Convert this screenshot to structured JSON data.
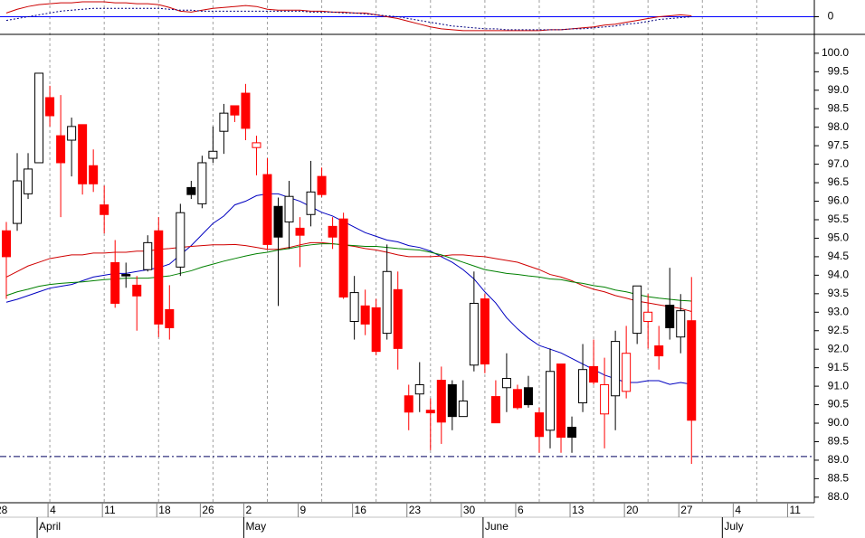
{
  "chart_data": [
    {
      "type": "candlestick",
      "categories": [
        "28",
        null,
        null,
        null,
        null,
        "4",
        null,
        null,
        null,
        null,
        "11",
        null,
        null,
        null,
        null,
        "18",
        null,
        null,
        null,
        "26",
        null,
        null,
        null,
        "2",
        null,
        null,
        null,
        null,
        "9",
        null,
        null,
        null,
        null,
        "16",
        null,
        null,
        null,
        null,
        "23",
        null,
        null,
        null,
        null,
        "30",
        null,
        null,
        null,
        null,
        "6",
        null,
        null,
        null,
        null,
        "13",
        null,
        null,
        null,
        null,
        "20",
        null,
        null,
        null,
        null,
        "27",
        null,
        null,
        null,
        null,
        "4",
        null,
        null,
        null,
        null,
        "11"
      ],
      "month_labels": [
        null,
        null,
        null,
        null,
        "April",
        null,
        null,
        null,
        null,
        null,
        null,
        null,
        null,
        null,
        null,
        null,
        null,
        null,
        null,
        null,
        null,
        null,
        null,
        "May",
        null,
        null,
        null,
        null,
        null,
        null,
        null,
        null,
        null,
        null,
        null,
        null,
        null,
        null,
        null,
        null,
        null,
        null,
        null,
        null,
        null,
        "June",
        null,
        null,
        null,
        null,
        null,
        null,
        null,
        null,
        null,
        null,
        null,
        null,
        null,
        null,
        null,
        null,
        null,
        null,
        null,
        null,
        null,
        "July",
        null,
        null,
        null,
        null,
        null,
        null
      ],
      "open": [
        null,
        95.2,
        95.4,
        96.2,
        97.04,
        98.8,
        97.77,
        97.65,
        98.07,
        96.96,
        95.9,
        94.34,
        94.02,
        93.73,
        94.15,
        95.2,
        93.07,
        94.22,
        96.18,
        95.93,
        97.16,
        97.89,
        98.58,
        98.92,
        97.58,
        96.72,
        95.86,
        95.44,
        95.27,
        95.64,
        96.67,
        95.32,
        95.52,
        92.75,
        93.17,
        93.12,
        92.43,
        93.61,
        90.74,
        90.79,
        90.35,
        91.16,
        91.04,
        90.18,
        91.57,
        93.36,
        90.72,
        90.96,
        90.91,
        90.96,
        90.28,
        89.81,
        91.6,
        89.89,
        90.55,
        91.53,
        90.25,
        90.74,
        90.86,
        92.43,
        92.75,
        92.09,
        93.19,
        92.33,
        92.77,
        null,
        null,
        null,
        null,
        null,
        null,
        null,
        null,
        null
      ],
      "high": [
        null,
        95.44,
        97.3,
        97.3,
        99.46,
        99.12,
        98.87,
        98.26,
        98.07,
        97.4,
        96.42,
        94.95,
        94.34,
        93.98,
        95.08,
        95.57,
        93.73,
        95.93,
        96.55,
        97.23,
        98.02,
        98.63,
        98.58,
        99.17,
        97.77,
        97.16,
        96.1,
        96.55,
        95.57,
        97.09,
        96.91,
        95.57,
        95.69,
        93.98,
        93.61,
        93.36,
        94.83,
        94.1,
        91.04,
        91.65,
        90.67,
        91.53,
        91.16,
        91.16,
        94.1,
        93.49,
        91.16,
        91.89,
        91.04,
        91.28,
        90.42,
        92.02,
        91.6,
        90.18,
        92.14,
        92.26,
        91.77,
        92.5,
        92.63,
        93.71,
        93.49,
        92.63,
        94.2,
        93.49,
        93.95,
        null,
        null,
        null,
        null,
        null,
        null,
        null,
        null,
        null
      ],
      "low": [
        null,
        93.36,
        95.2,
        96.06,
        97.04,
        98.02,
        95.57,
        96.67,
        96.18,
        96.25,
        95.13,
        93.12,
        93.66,
        92.5,
        94.1,
        92.33,
        92.26,
        93.98,
        96.06,
        95.81,
        97.04,
        97.28,
        98.14,
        97.65,
        96.7,
        94.71,
        93.17,
        94.71,
        94.22,
        95.32,
        96.11,
        94.71,
        93.36,
        92.26,
        92.38,
        91.84,
        92.26,
        91.45,
        89.81,
        90.3,
        89.27,
        89.44,
        89.81,
        90.18,
        91.4,
        91.35,
        90.01,
        90.3,
        90.37,
        90.42,
        89.2,
        89.32,
        89.2,
        89.2,
        90.3,
        91.04,
        89.32,
        89.81,
        90.67,
        92.14,
        92.02,
        91.45,
        92.26,
        91.89,
        88.9,
        null,
        null,
        null,
        null,
        null,
        null,
        null,
        null,
        null
      ],
      "close": [
        null,
        94.5,
        96.55,
        96.87,
        99.46,
        98.31,
        97.04,
        98.02,
        96.47,
        96.47,
        95.64,
        93.24,
        93.98,
        93.44,
        94.88,
        92.68,
        92.58,
        95.69,
        96.37,
        97.04,
        97.35,
        98.38,
        98.33,
        97.97,
        97.45,
        94.83,
        95.03,
        96.13,
        95.08,
        96.25,
        96.18,
        95.03,
        93.41,
        93.53,
        92.68,
        91.94,
        94.1,
        92.02,
        90.3,
        91.04,
        90.28,
        90.03,
        90.18,
        90.6,
        93.24,
        91.6,
        90.01,
        91.21,
        90.42,
        90.5,
        89.64,
        91.4,
        89.62,
        89.62,
        91.45,
        91.11,
        91.04,
        92.21,
        91.89,
        93.71,
        93.0,
        91.82,
        92.58,
        93.04,
        90.08,
        null,
        null,
        null,
        null,
        null,
        null,
        null,
        null,
        null
      ],
      "fill": [
        null,
        "#f00",
        "#fff",
        "#fff",
        "#fff",
        "#f00",
        "#f00",
        "#fff",
        "#f00",
        "#f00",
        "#f00",
        "#f00",
        "#000",
        "#f00",
        "#fff",
        "#f00",
        "#f00",
        "#fff",
        "#000",
        "#fff",
        "#fff",
        "#fff",
        "#f00",
        "#f00",
        "#fff",
        "#f00",
        "#000",
        "#fff",
        "#f00",
        "#fff",
        "#f00",
        "#f00",
        "#f00",
        "#fff",
        "#f00",
        "#f00",
        "#fff",
        "#f00",
        "#f00",
        "#fff",
        "#f00",
        "#f00",
        "#000",
        "#fff",
        "#fff",
        "#f00",
        "#f00",
        "#fff",
        "#f00",
        "#000",
        "#f00",
        "#fff",
        "#f00",
        "#000",
        "#fff",
        "#f00",
        "#fff",
        "#fff",
        "#fff",
        "#fff",
        "#fff",
        "#f00",
        "#000",
        "#fff",
        "#f00",
        null,
        null,
        null,
        null,
        null,
        null,
        null,
        null,
        null
      ],
      "edge": [
        null,
        "#f00",
        "#000",
        "#000",
        "#000",
        "#f00",
        "#f00",
        "#000",
        "#f00",
        "#f00",
        "#f00",
        "#f00",
        "#000",
        "#f00",
        "#000",
        "#f00",
        "#f00",
        "#000",
        "#000",
        "#000",
        "#000",
        "#000",
        "#f00",
        "#f00",
        "#f00",
        "#f00",
        "#000",
        "#000",
        "#f00",
        "#000",
        "#f00",
        "#f00",
        "#f00",
        "#000",
        "#f00",
        "#f00",
        "#000",
        "#f00",
        "#f00",
        "#000",
        "#f00",
        "#f00",
        "#000",
        "#000",
        "#000",
        "#f00",
        "#f00",
        "#000",
        "#f00",
        "#000",
        "#f00",
        "#000",
        "#f00",
        "#000",
        "#000",
        "#f00",
        "#f00",
        "#000",
        "#f00",
        "#000",
        "#f00",
        "#f00",
        "#000",
        "#000",
        "#f00",
        null,
        null,
        null,
        null,
        null,
        null,
        null,
        null,
        null
      ],
      "series": [
        {
          "color": "#0000c0",
          "values": [
            null,
            93.27,
            93.35,
            93.45,
            93.55,
            93.65,
            93.7,
            93.75,
            93.85,
            93.95,
            94.0,
            94.05,
            94.05,
            94.1,
            94.15,
            94.2,
            94.3,
            94.55,
            94.8,
            95.1,
            95.4,
            95.6,
            95.9,
            96.0,
            96.15,
            96.2,
            96.2,
            96.1,
            96.0,
            95.85,
            95.7,
            95.6,
            95.45,
            95.3,
            95.15,
            95.05,
            94.95,
            94.9,
            94.8,
            94.75,
            94.65,
            94.5,
            94.35,
            94.15,
            93.9,
            93.55,
            93.25,
            92.85,
            92.55,
            92.3,
            92.1,
            92.0,
            91.9,
            91.75,
            91.6,
            91.45,
            91.3,
            91.2,
            91.1,
            91.1,
            91.15,
            91.15,
            91.05,
            91.1,
            91.05,
            null,
            null,
            null,
            null,
            null,
            null,
            null,
            null,
            null
          ]
        },
        {
          "color": "#d00000",
          "values": [
            null,
            93.95,
            94.1,
            94.25,
            94.35,
            94.45,
            94.5,
            94.55,
            94.55,
            94.6,
            94.6,
            94.62,
            94.62,
            94.65,
            94.65,
            94.7,
            94.72,
            94.75,
            94.78,
            94.8,
            94.82,
            94.82,
            94.83,
            94.8,
            94.75,
            94.7,
            94.7,
            94.75,
            94.82,
            94.88,
            94.88,
            94.85,
            94.82,
            94.78,
            94.72,
            94.68,
            94.62,
            94.55,
            94.5,
            94.5,
            94.5,
            94.52,
            94.55,
            94.55,
            94.52,
            94.5,
            94.45,
            94.4,
            94.35,
            94.25,
            94.15,
            94.02,
            93.95,
            93.85,
            93.72,
            93.62,
            93.55,
            93.45,
            93.38,
            93.3,
            93.25,
            93.2,
            93.15,
            93.1,
            93.02,
            null,
            null,
            null,
            null,
            null,
            null,
            null,
            null,
            null
          ]
        },
        {
          "color": "#008000",
          "values": [
            null,
            93.45,
            93.55,
            93.62,
            93.7,
            93.75,
            93.78,
            93.8,
            93.82,
            93.85,
            93.88,
            93.9,
            93.92,
            93.92,
            93.92,
            93.95,
            93.98,
            94.05,
            94.12,
            94.22,
            94.3,
            94.38,
            94.45,
            94.52,
            94.58,
            94.62,
            94.68,
            94.72,
            94.78,
            94.82,
            94.85,
            94.85,
            94.82,
            94.8,
            94.78,
            94.78,
            94.75,
            94.72,
            94.7,
            94.68,
            94.62,
            94.55,
            94.45,
            94.35,
            94.25,
            94.15,
            94.1,
            94.05,
            94.02,
            93.98,
            93.95,
            93.9,
            93.88,
            93.82,
            93.78,
            93.72,
            93.68,
            93.6,
            93.55,
            93.48,
            93.42,
            93.38,
            93.35,
            93.32,
            93.3,
            null,
            null,
            null,
            null,
            null,
            null,
            null,
            null,
            null
          ]
        }
      ],
      "hline": {
        "value": 89.1,
        "color": "#000060",
        "style": "dashdot"
      },
      "ylim": [
        87.85,
        100.51
      ],
      "yticks": [
        {
          "value": 88,
          "label": "88.0"
        },
        88.5,
        {
          "value": 89,
          "label": "89.0"
        },
        89.5,
        {
          "value": 90,
          "label": "90.0"
        },
        90.5,
        {
          "value": 91,
          "label": "91.0"
        },
        91.5,
        {
          "value": 92,
          "label": "92.0"
        },
        92.5,
        {
          "value": 93,
          "label": "93.0"
        },
        93.5,
        {
          "value": 94,
          "label": "94.0"
        },
        94.5,
        {
          "value": 95,
          "label": "95.0"
        },
        95.5,
        {
          "value": 96,
          "label": "96.0"
        },
        96.5,
        {
          "value": 97,
          "label": "97.0"
        },
        97.5,
        {
          "value": 98,
          "label": "98.0"
        },
        98.5,
        {
          "value": 99,
          "label": "99.0"
        },
        99.5,
        {
          "value": 100,
          "label": "100.0"
        }
      ],
      "grid": "x"
    },
    {
      "type": "line",
      "series": [
        {
          "color": "#cc0000",
          "dash": false,
          "values": [
            null,
            4,
            8,
            11,
            13,
            14,
            15,
            15,
            16,
            16,
            16,
            15,
            15,
            14,
            14,
            13,
            10,
            6,
            5,
            7,
            9,
            10,
            11,
            12,
            11,
            8,
            7,
            7,
            7,
            6,
            6,
            5,
            5,
            4,
            4,
            2,
            0,
            -2,
            -5,
            -8,
            -11,
            -13,
            -14,
            -15,
            -15,
            -15,
            -15,
            -15,
            -15,
            -15,
            -15,
            -14,
            -14,
            -13,
            -12,
            -11,
            -9,
            -8,
            -6,
            -4,
            -2,
            0,
            1,
            2,
            1,
            null,
            null,
            null,
            null,
            null,
            null,
            null,
            null,
            null
          ]
        },
        {
          "color": "#000080",
          "dash": true,
          "values": [
            null,
            -4,
            -2,
            0,
            2,
            4,
            6,
            7,
            8,
            9,
            9,
            9,
            9,
            9,
            9,
            9,
            8,
            7,
            7,
            6,
            6,
            6,
            6,
            6,
            6,
            6,
            6,
            6,
            6,
            5,
            5,
            5,
            4,
            4,
            3,
            2,
            1,
            0,
            -2,
            -4,
            -6,
            -8,
            -10,
            -11,
            -12,
            -13,
            -13,
            -14,
            -14,
            -14,
            -14,
            -14,
            -14,
            -13,
            -13,
            -12,
            -11,
            -10,
            -8,
            -7,
            -5,
            -3,
            -2,
            -1,
            0,
            null,
            null,
            null,
            null,
            null,
            null,
            null,
            null,
            null
          ]
        }
      ],
      "ylim": [
        -19,
        18
      ],
      "yticks": [
        0
      ],
      "zero_line_color": "#0000ff"
    }
  ]
}
